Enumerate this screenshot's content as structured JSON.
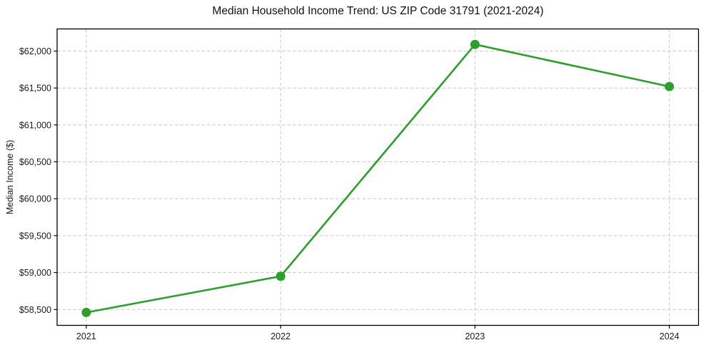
{
  "figure": {
    "background": "#ffffff"
  },
  "chart_data": {
    "type": "line",
    "title": "Median Household Income Trend: US ZIP Code 31791 (2021-2024)",
    "xlabel": "",
    "ylabel": "Median Income ($)",
    "categories": [
      "2021",
      "2022",
      "2023",
      "2024"
    ],
    "series": [
      {
        "color": "#2ca02c",
        "marker": "circle",
        "values": [
          58460,
          58950,
          62090,
          61520
        ]
      }
    ],
    "ylim": [
      58285,
      62300
    ],
    "x_margin": 0.15,
    "yticks": [
      {
        "value": 58500,
        "label": "$58,500"
      },
      {
        "value": 59000,
        "label": "$59,000"
      },
      {
        "value": 59500,
        "label": "$59,500"
      },
      {
        "value": 60000,
        "label": "$60,000"
      },
      {
        "value": 60500,
        "label": "$60,500"
      },
      {
        "value": 61000,
        "label": "$61,000"
      },
      {
        "value": 61500,
        "label": "$61,500"
      },
      {
        "value": 62000,
        "label": "$62,000"
      }
    ],
    "grid": true,
    "grid_color": "#c9c9c9",
    "axis_color": "#000000",
    "legend_position": "none"
  }
}
